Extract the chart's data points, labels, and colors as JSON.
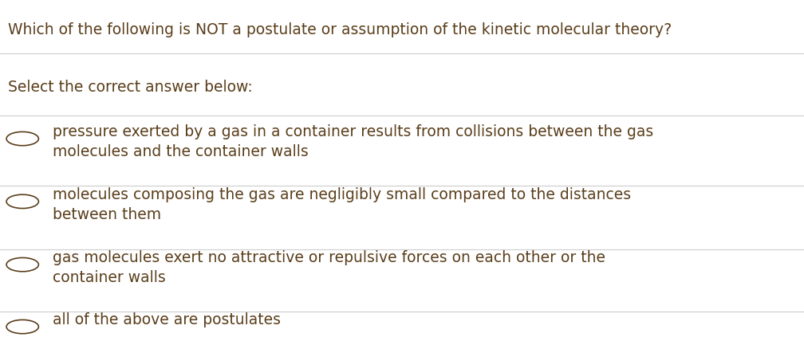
{
  "title": "Which of the following is NOT a postulate or assumption of the kinetic molecular theory?",
  "subtitle": "Select the correct answer below:",
  "options": [
    "pressure exerted by a gas in a container results from collisions between the gas\nmolecules and the container walls",
    "molecules composing the gas are negligibly small compared to the distances\nbetween them",
    "gas molecules exert no attractive or repulsive forces on each other or the\ncontainer walls",
    "all of the above are postulates"
  ],
  "title_color": "#5a3e1b",
  "subtitle_color": "#5a3e1b",
  "option_color": "#5a3e1b",
  "background_color": "#ffffff",
  "line_color": "#cccccc",
  "circle_color": "#5a3e1b",
  "title_fontsize": 13.5,
  "subtitle_fontsize": 13.5,
  "option_fontsize": 13.5
}
